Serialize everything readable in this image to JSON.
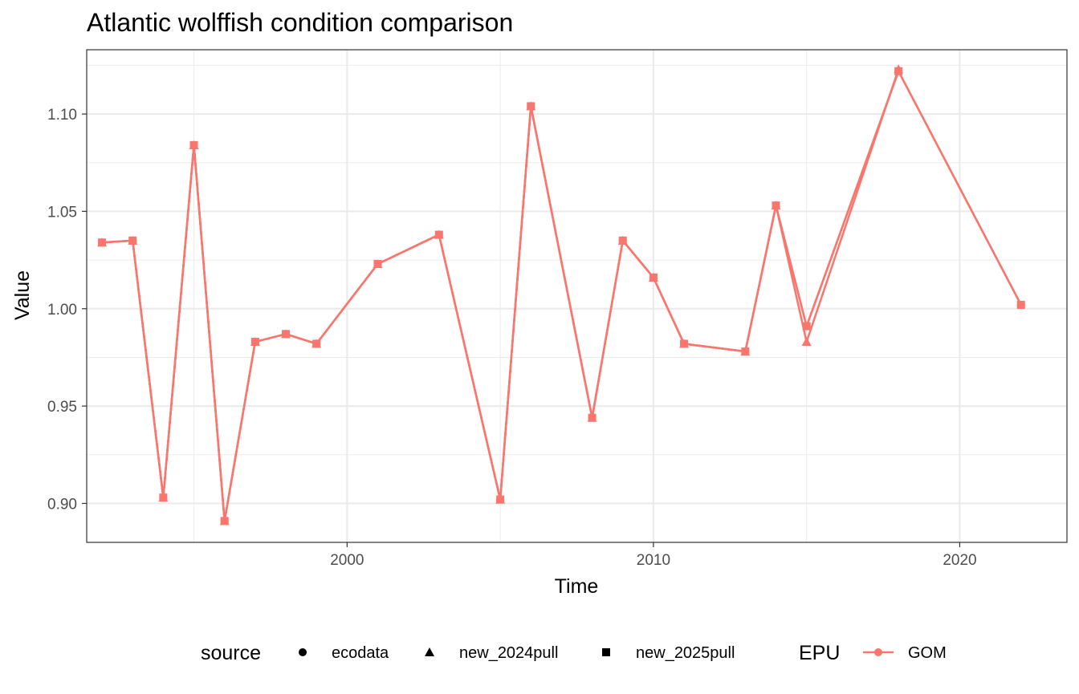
{
  "chart_data": {
    "type": "line",
    "title": "Atlantic wolffish condition comparison",
    "xlabel": "Time",
    "ylabel": "Value",
    "xlim": [
      1991.5,
      2023.5
    ],
    "ylim": [
      0.88,
      1.133
    ],
    "x_ticks": [
      2000,
      2010,
      2020
    ],
    "x_tick_labels": [
      "2000",
      "2010",
      "2020"
    ],
    "x_minor_ticks": [
      1995,
      2005,
      2015
    ],
    "y_ticks": [
      0.9,
      0.95,
      1.0,
      1.05,
      1.1
    ],
    "y_tick_labels": [
      "0.90",
      "0.95",
      "1.00",
      "1.05",
      "1.10"
    ],
    "y_minor_ticks": [
      0.925,
      0.975,
      1.025,
      1.075,
      1.125
    ],
    "grid": true,
    "legend_position": "bottom",
    "color": "#F8766D",
    "legend": {
      "source_title": "source",
      "source_items": [
        {
          "label": "ecodata",
          "shape": "circle"
        },
        {
          "label": "new_2024pull",
          "shape": "triangle"
        },
        {
          "label": "new_2025pull",
          "shape": "square"
        }
      ],
      "epu_title": "EPU",
      "epu_items": [
        {
          "label": "GOM",
          "color": "#F8766D"
        }
      ]
    },
    "series": [
      {
        "source": "ecodata",
        "epu": "GOM",
        "shape": "circle",
        "x": [
          1992,
          1993,
          1994,
          1995,
          1996,
          1997,
          1998,
          1999,
          2001,
          2003,
          2005,
          2006,
          2008,
          2009,
          2010,
          2011,
          2013,
          2014,
          2015,
          2018,
          2022
        ],
        "y": [
          1.034,
          1.035,
          0.903,
          1.084,
          0.891,
          0.983,
          0.987,
          0.982,
          1.023,
          1.038,
          0.902,
          1.104,
          0.944,
          1.035,
          1.016,
          0.982,
          0.978,
          1.053,
          0.991,
          1.122,
          1.002
        ]
      },
      {
        "source": "new_2024pull",
        "epu": "GOM",
        "shape": "triangle",
        "x": [
          1992,
          1993,
          1994,
          1995,
          1996,
          1997,
          1998,
          1999,
          2001,
          2003,
          2005,
          2006,
          2008,
          2009,
          2010,
          2011,
          2013,
          2014,
          2015,
          2018
        ],
        "y": [
          1.034,
          1.035,
          0.903,
          1.084,
          0.891,
          0.983,
          0.987,
          0.982,
          1.023,
          1.038,
          0.902,
          1.104,
          0.944,
          1.035,
          1.016,
          0.982,
          0.978,
          1.053,
          0.983,
          1.123
        ]
      },
      {
        "source": "new_2025pull",
        "epu": "GOM",
        "shape": "square",
        "x": [
          1992,
          1993,
          1994,
          1995,
          1996,
          1997,
          1998,
          1999,
          2001,
          2003,
          2005,
          2006,
          2008,
          2009,
          2010,
          2011,
          2013,
          2014,
          2015,
          2018,
          2022
        ],
        "y": [
          1.034,
          1.035,
          0.903,
          1.084,
          0.891,
          0.983,
          0.987,
          0.982,
          1.023,
          1.038,
          0.902,
          1.104,
          0.944,
          1.035,
          1.016,
          0.982,
          0.978,
          1.053,
          0.991,
          1.122,
          1.002
        ]
      }
    ]
  }
}
